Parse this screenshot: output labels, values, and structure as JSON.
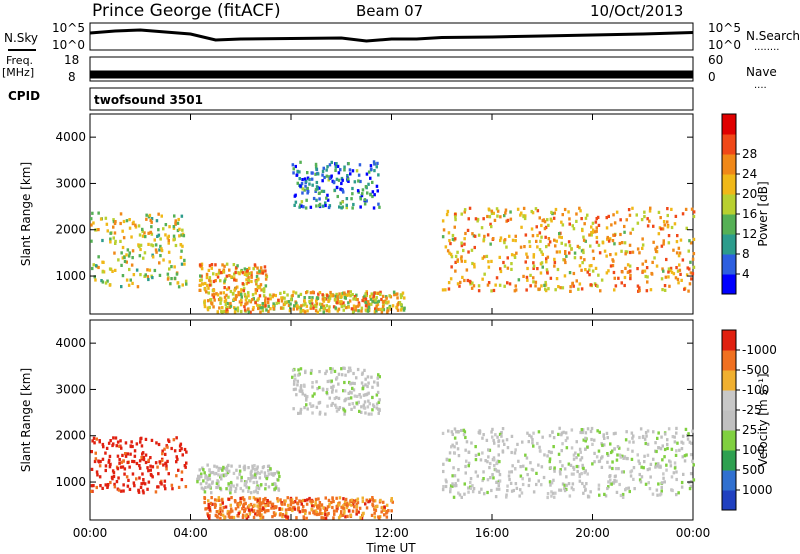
{
  "header": {
    "station": "Prince George (fitACF)",
    "beam": "Beam 07",
    "date": "10/Oct/2013"
  },
  "left_labels": {
    "nsky": "N.Sky",
    "freq": "Freq.",
    "freq_unit": "[MHz]",
    "cpid": "CPID"
  },
  "right_labels": {
    "nsearch": "N.Search",
    "nsearch_dots": "........",
    "nave": "Nave",
    "nave_dots": "...."
  },
  "cpid_text": "twofsound 3501",
  "chart_data": [
    {
      "type": "line",
      "panel": "noise",
      "y_ticks_left": [
        "10^5",
        "10^0"
      ],
      "y_ticks_right": [
        "10^5",
        "10^0"
      ],
      "series": [
        {
          "name": "N.Sky",
          "x": [
            0,
            1,
            2,
            3,
            4,
            5,
            6,
            8,
            10,
            11,
            12,
            13,
            14,
            16,
            18,
            20,
            22,
            24
          ],
          "y": [
            3.2,
            3.6,
            3.8,
            3.4,
            3.0,
            1.8,
            2.0,
            2.1,
            2.2,
            1.6,
            2.0,
            2.0,
            2.3,
            2.4,
            2.6,
            2.8,
            3.0,
            3.3
          ]
        }
      ],
      "x_unit": "hours UT"
    },
    {
      "type": "line",
      "panel": "freq_nave",
      "y_ticks_left": [
        "18",
        "8"
      ],
      "y_ticks_right": [
        "60",
        "0"
      ],
      "series": [
        {
          "name": "Freq.",
          "x": [
            0,
            24
          ],
          "y": [
            10.5,
            10.5
          ]
        }
      ],
      "x_unit": "hours UT"
    },
    {
      "type": "heatmap",
      "panel": "power",
      "xlabel": "",
      "ylabel": "Slant Range [km]",
      "x_unit": "hours UT",
      "xlim": [
        0,
        24
      ],
      "ylim": [
        180,
        4500
      ],
      "yticks": [
        "1000",
        "2000",
        "3000",
        "4000"
      ],
      "colorbar": {
        "label": "Power [dB]",
        "ticks": [
          "4",
          "8",
          "12",
          "16",
          "20",
          "24",
          "28"
        ],
        "range": [
          0,
          30
        ],
        "colors": [
          "#0000ff",
          "#2d5fe0",
          "#2c9c8c",
          "#55b055",
          "#b8d030",
          "#f0b818",
          "#f08818",
          "#f04818",
          "#e00000"
        ]
      },
      "features": [
        {
          "name": "dusk scatter",
          "t0": 0.0,
          "t1": 3.8,
          "r_lo": 800,
          "r_hi": 2400,
          "level": 16
        },
        {
          "name": "midday band",
          "t0": 4.3,
          "t1": 7.0,
          "r_lo": 700,
          "r_hi": 1300,
          "level": 20
        },
        {
          "name": "near range",
          "t0": 4.5,
          "t1": 12.5,
          "r_lo": 250,
          "r_hi": 700,
          "level": 18
        },
        {
          "name": "far scatter",
          "t0": 8.0,
          "t1": 11.5,
          "r_lo": 2500,
          "r_hi": 3500,
          "level": 6
        },
        {
          "name": "dawn scatter",
          "t0": 14.0,
          "t1": 24.0,
          "r_lo": 700,
          "r_hi": 2500,
          "level": 20
        }
      ]
    },
    {
      "type": "heatmap",
      "panel": "velocity",
      "xlabel": "Time UT",
      "ylabel": "Slant Range [km]",
      "x_unit": "hours UT",
      "xlim": [
        0,
        24
      ],
      "ylim": [
        180,
        4500
      ],
      "xticks": [
        "00:00",
        "04:00",
        "08:00",
        "12:00",
        "16:00",
        "20:00",
        "00:00"
      ],
      "yticks": [
        "1000",
        "2000",
        "3000",
        "4000"
      ],
      "colorbar": {
        "label": "Velocity [m s⁻¹]",
        "ticks": [
          "1000",
          "500",
          "100",
          "25",
          "-25",
          "-100",
          "-500",
          "-1000"
        ],
        "colors": [
          "#2040c0",
          "#3070d0",
          "#2ea050",
          "#80d040",
          "#c0c0c0",
          "#c8c8c8",
          "#f0b030",
          "#f07020",
          "#e02010"
        ]
      },
      "features": [
        {
          "name": "dusk scatter",
          "t0": 0.0,
          "t1": 3.8,
          "r_lo": 800,
          "r_hi": 2000,
          "velocity": -800
        },
        {
          "name": "midday band",
          "t0": 4.2,
          "t1": 7.5,
          "r_lo": 800,
          "r_hi": 1400,
          "velocity": 0
        },
        {
          "name": "near range",
          "t0": 4.5,
          "t1": 12.0,
          "r_lo": 250,
          "r_hi": 700,
          "velocity": -200
        },
        {
          "name": "far scatter",
          "t0": 8.0,
          "t1": 11.5,
          "r_lo": 2500,
          "r_hi": 3500,
          "velocity": 0
        },
        {
          "name": "dawn scatter",
          "t0": 14.0,
          "t1": 24.0,
          "r_lo": 700,
          "r_hi": 2200,
          "velocity": 0
        }
      ]
    }
  ]
}
